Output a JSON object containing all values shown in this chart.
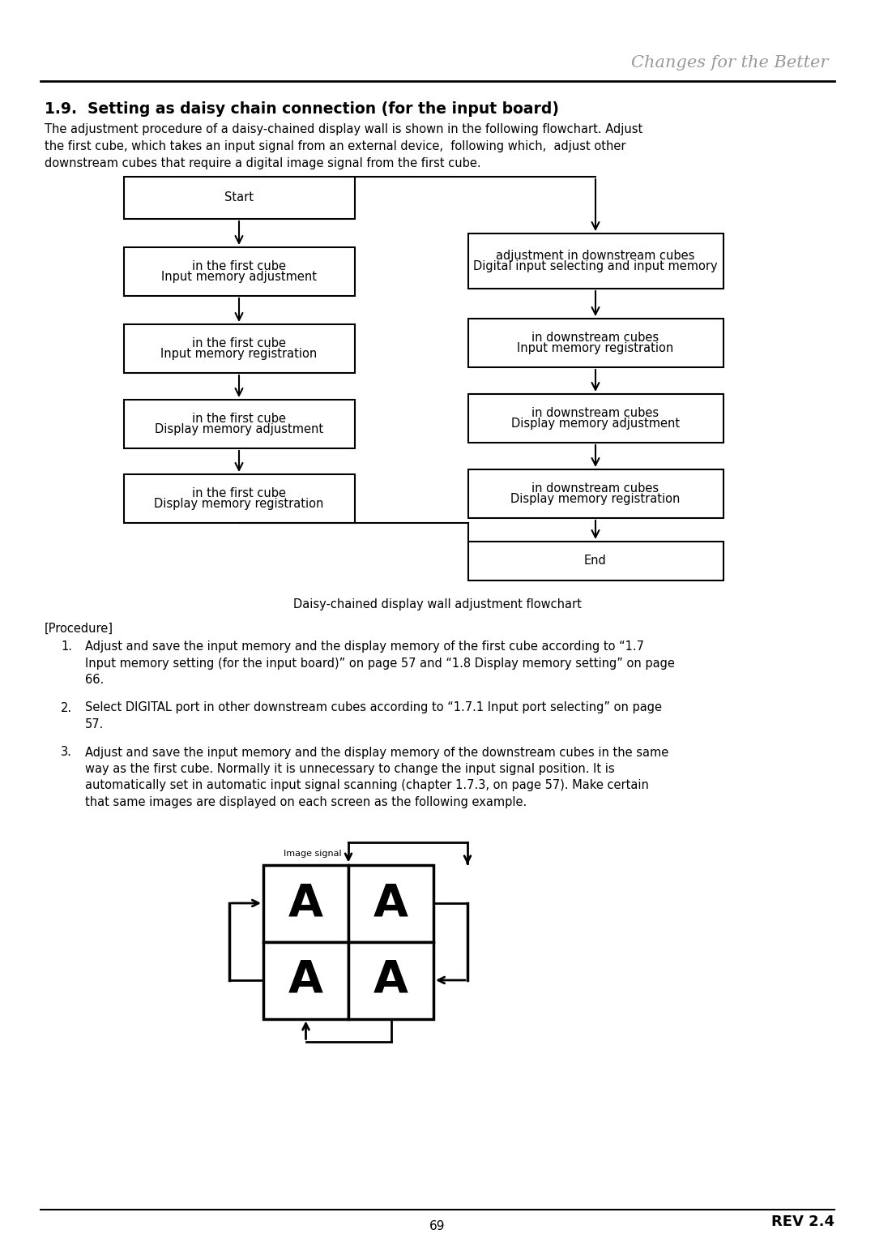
{
  "title_header": "Changes for the Better",
  "section_title": "1.9.  Setting as daisy chain connection (for the input board)",
  "intro_text_lines": [
    "The adjustment procedure of a daisy-chained display wall is shown in the following flowchart. Adjust",
    "the first cube, which takes an input signal from an external device,  following which,  adjust other",
    "downstream cubes that require a digital image signal from the first cube."
  ],
  "flowchart_caption": "Daisy-chained display wall adjustment flowchart",
  "left_boxes": [
    "Start",
    "Input memory adjustment\nin the first cube",
    "Input memory registration\nin the first cube",
    "Display memory adjustment\nin the first cube",
    "Display memory registration\nin the first cube"
  ],
  "right_boxes": [
    "Digital input selecting and input memory\nadjustment in downstream cubes",
    "Input memory registration\nin downstream cubes",
    "Display memory adjustment\nin downstream cubes",
    "Display memory registration\nin downstream cubes",
    "End"
  ],
  "procedure_title": "[Procedure]",
  "procedure_items": [
    [
      "Adjust and save the input memory and the display memory of the first cube according to “1.7",
      "Input memory setting (for the input board)” on page 57 and “1.8 Display memory setting” on page",
      "66."
    ],
    [
      "Select DIGITAL port in other downstream cubes according to “1.7.1 Input port selecting” on page",
      "57."
    ],
    [
      "Adjust and save the input memory and the display memory of the downstream cubes in the same",
      "way as the first cube. Normally it is unnecessary to change the input signal position. It is",
      "automatically set in automatic input signal scanning (chapter 1.7.3, on page 57). Make certain",
      "that same images are displayed on each screen as the following example."
    ]
  ],
  "image_signal_label": "Image signal",
  "footer_rev": "REV 2.4",
  "footer_page": "69",
  "bg_color": "#ffffff",
  "text_color": "#000000",
  "box_edge_color": "#000000",
  "header_line_color": "#000000",
  "header_text_color": "#999999"
}
